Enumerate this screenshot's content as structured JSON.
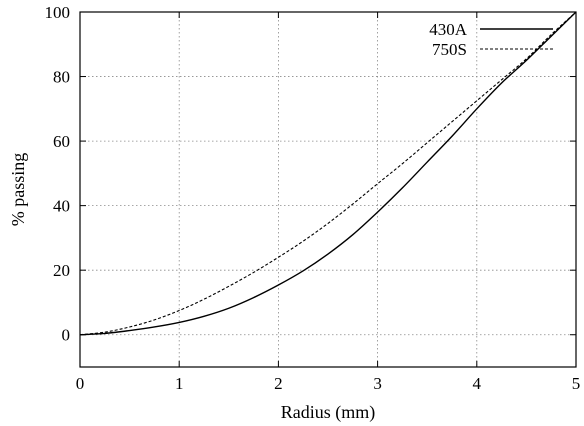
{
  "chart_data": {
    "type": "line",
    "title": "",
    "xlabel": "Radius (mm)",
    "ylabel": "% passing",
    "xlim": [
      0,
      5
    ],
    "ylim": [
      -10,
      100
    ],
    "xticks": [
      "0",
      "1",
      "2",
      "3",
      "4",
      "5"
    ],
    "yticks": [
      "0",
      "20",
      "40",
      "60",
      "80",
      "100"
    ],
    "grid": true,
    "legend_position": "top-right",
    "series": [
      {
        "name": "430A",
        "style": "solid",
        "color": "#000000",
        "x": [
          0,
          0.25,
          0.5,
          0.75,
          1.0,
          1.25,
          1.5,
          1.75,
          2.0,
          2.25,
          2.5,
          2.75,
          3.0,
          3.25,
          3.5,
          3.75,
          4.0,
          4.25,
          4.5,
          4.75,
          5.0
        ],
        "y": [
          0,
          0.4,
          1.3,
          2.4,
          3.8,
          5.7,
          8.2,
          11.5,
          15.4,
          19.8,
          25.0,
          31.0,
          38.0,
          45.5,
          53.5,
          61.5,
          70.0,
          78.0,
          85.0,
          92.5,
          100
        ]
      },
      {
        "name": "750S",
        "style": "dashed",
        "color": "#000000",
        "x": [
          0,
          0.25,
          0.5,
          0.75,
          1.0,
          1.25,
          1.5,
          1.75,
          2.0,
          2.25,
          2.5,
          2.75,
          3.0,
          3.25,
          3.5,
          3.75,
          4.0,
          4.25,
          4.5,
          4.75,
          5.0
        ],
        "y": [
          0,
          0.8,
          2.4,
          4.6,
          7.5,
          11.0,
          15.0,
          19.3,
          24.0,
          29.0,
          34.5,
          40.5,
          46.8,
          53.0,
          59.5,
          66.0,
          72.5,
          79.0,
          85.5,
          93.0,
          100
        ]
      }
    ]
  }
}
